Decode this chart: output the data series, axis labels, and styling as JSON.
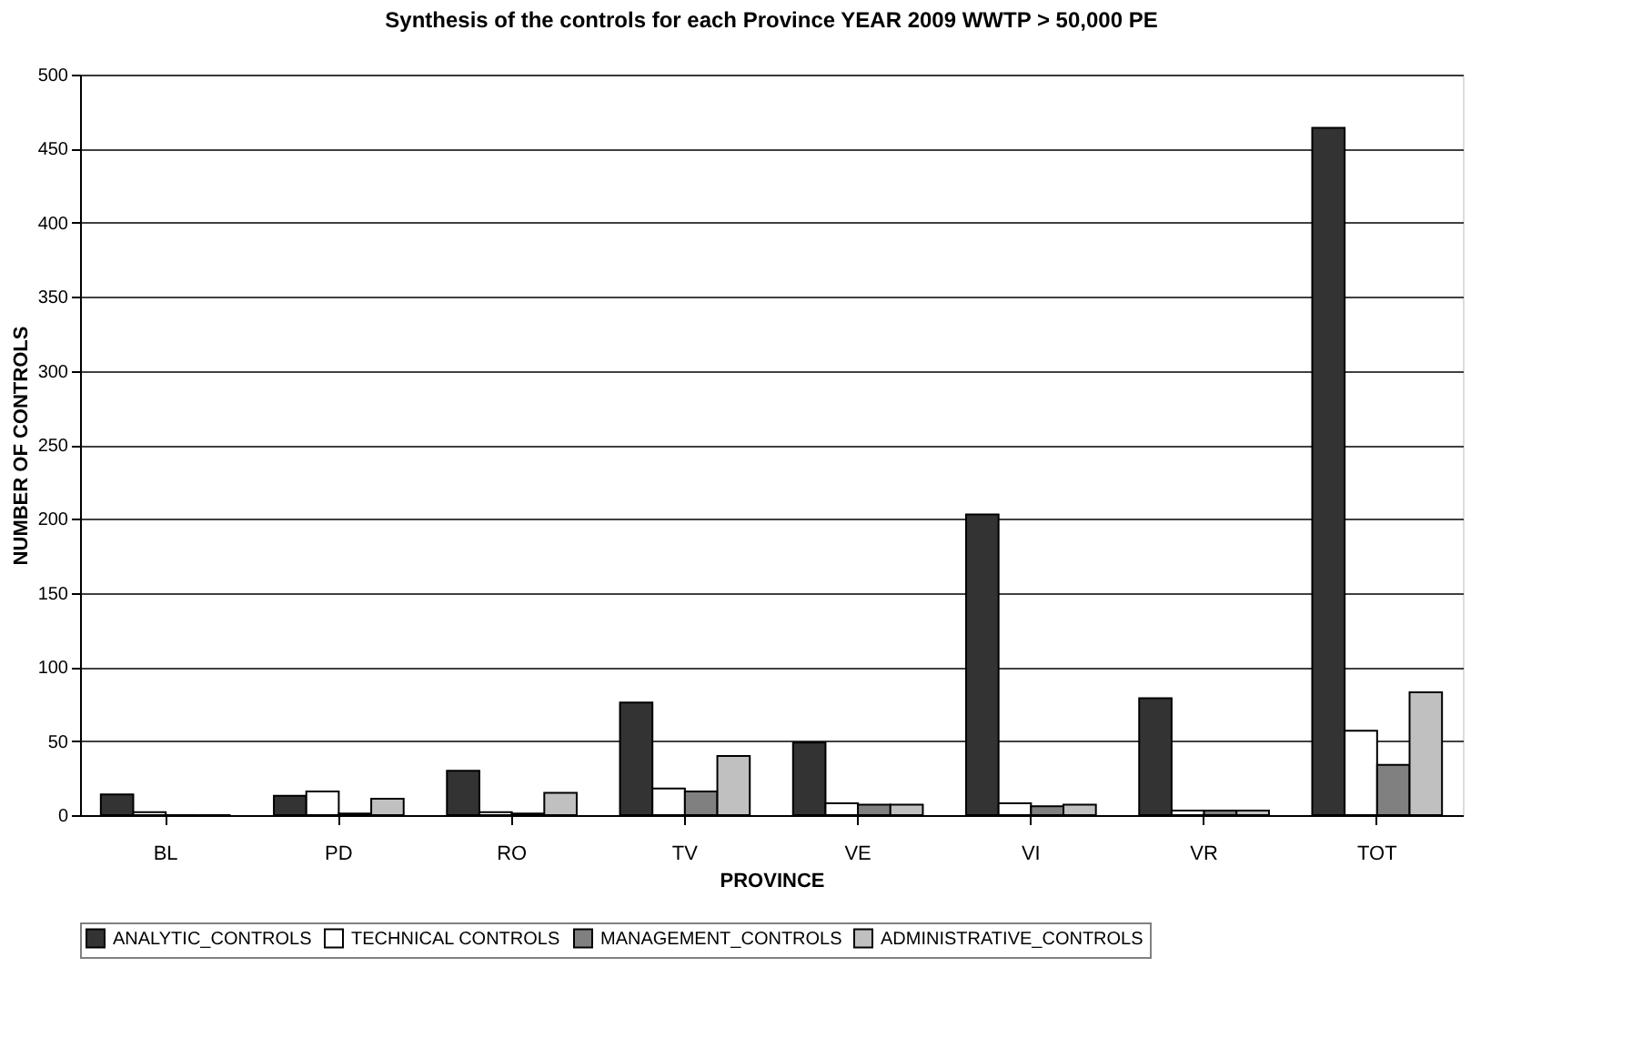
{
  "chart_data": {
    "type": "bar",
    "title": "Synthesis of the controls for each Province YEAR 2009 WWTP >  50,000 PE",
    "xlabel": "PROVINCE",
    "ylabel": "NUMBER OF CONTROLS",
    "categories": [
      "BL",
      "PD",
      "RO",
      "TV",
      "VE",
      "VI",
      "VR",
      "TOT"
    ],
    "series": [
      {
        "name": "ANALYTIC_CONTROLS",
        "color": "#333333",
        "values": [
          14,
          13,
          30,
          76,
          49,
          203,
          79,
          464
        ]
      },
      {
        "name": "TECHNICAL CONTROLS",
        "color": "#ffffff",
        "values": [
          2,
          16,
          2,
          18,
          8,
          8,
          3,
          57
        ]
      },
      {
        "name": "MANAGEMENT_CONTROLS",
        "color": "#808080",
        "values": [
          0,
          1,
          1,
          16,
          7,
          6,
          3,
          34
        ]
      },
      {
        "name": "ADMINISTRATIVE_CONTROLS",
        "color": "#c0c0c0",
        "values": [
          0,
          11,
          15,
          40,
          7,
          7,
          3,
          83
        ]
      }
    ],
    "ylim": [
      0,
      500
    ],
    "yticks": [
      0,
      50,
      100,
      150,
      200,
      250,
      300,
      350,
      400,
      450,
      500
    ],
    "grid": "y",
    "legend": "bottom"
  }
}
